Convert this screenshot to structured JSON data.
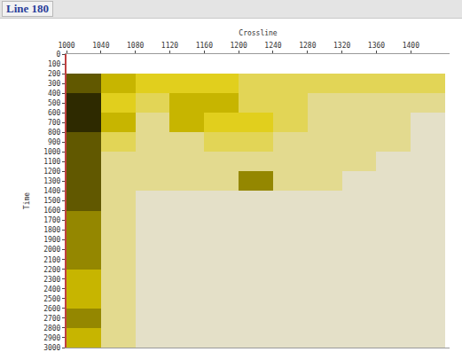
{
  "chart_data": {
    "type": "heatmap",
    "title": "Line 180",
    "x_label": "Crossline",
    "y_label": "Time",
    "x": [
      1020,
      1060,
      1100,
      1140,
      1180,
      1220,
      1260,
      1300,
      1340,
      1380,
      1420
    ],
    "y": [
      100,
      300,
      500,
      700,
      900,
      1100,
      1300,
      1500,
      1700,
      1900,
      2100,
      2300,
      2500,
      2700,
      2900
    ],
    "values": [
      [
        null,
        null,
        null,
        null,
        null,
        null,
        null,
        null,
        null,
        null,
        null
      ],
      [
        8,
        6,
        5,
        5,
        5,
        4,
        4,
        4,
        4,
        4,
        4
      ],
      [
        9,
        5,
        4,
        6,
        6,
        4,
        4,
        3,
        3,
        3,
        3
      ],
      [
        9,
        6,
        3,
        6,
        5,
        5,
        4,
        3,
        3,
        3,
        2
      ],
      [
        8,
        4,
        3,
        3,
        4,
        4,
        3,
        3,
        3,
        3,
        2
      ],
      [
        8,
        3,
        3,
        3,
        3,
        3,
        3,
        3,
        3,
        2,
        2
      ],
      [
        8,
        3,
        3,
        3,
        3,
        7,
        3,
        3,
        2,
        2,
        2
      ],
      [
        8,
        3,
        2,
        2,
        2,
        2,
        2,
        2,
        2,
        2,
        2
      ],
      [
        7,
        3,
        2,
        2,
        2,
        2,
        2,
        2,
        2,
        2,
        2
      ],
      [
        7,
        3,
        2,
        2,
        2,
        2,
        2,
        2,
        2,
        2,
        2
      ],
      [
        7,
        3,
        2,
        2,
        2,
        2,
        2,
        2,
        2,
        2,
        2
      ],
      [
        6,
        3,
        2,
        2,
        2,
        2,
        2,
        2,
        2,
        2,
        2
      ],
      [
        6,
        3,
        2,
        2,
        2,
        2,
        2,
        2,
        2,
        2,
        2
      ],
      [
        7,
        3,
        2,
        2,
        2,
        2,
        2,
        2,
        2,
        2,
        2
      ],
      [
        6,
        3,
        2,
        2,
        2,
        2,
        2,
        2,
        2,
        2,
        2
      ]
    ],
    "color": "#e0cc00",
    "xlim": [
      1000,
      1445
    ],
    "xticks": [
      1000,
      1040,
      1080,
      1120,
      1160,
      1200,
      1240,
      1280,
      1320,
      1360,
      1400
    ],
    "ylim": [
      3000,
      0
    ],
    "yticks": [
      0,
      100,
      200,
      300,
      400,
      500,
      600,
      700,
      800,
      900,
      1000,
      1100,
      1200,
      1300,
      1400,
      1500,
      1600,
      1700,
      1800,
      1900,
      2000,
      2100,
      2200,
      2300,
      2400,
      2500,
      2600,
      2700,
      2800,
      2900,
      3000
    ],
    "grid": false
  }
}
